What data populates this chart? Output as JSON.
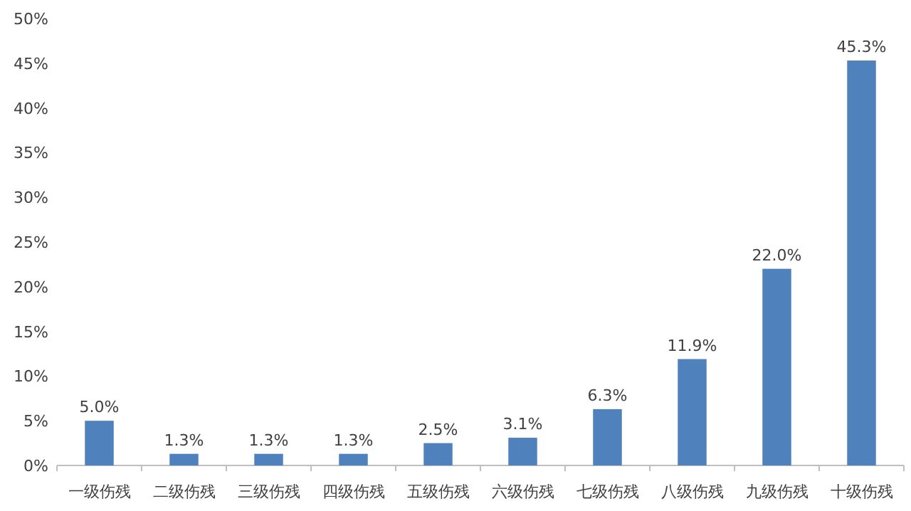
{
  "chart_data": {
    "type": "bar",
    "categories": [
      "一级伤残",
      "二级伤残",
      "三级伤残",
      "四级伤残",
      "五级伤残",
      "六级伤残",
      "七级伤残",
      "八级伤残",
      "九级伤残",
      "十级伤残"
    ],
    "values": [
      5.0,
      1.3,
      1.3,
      1.3,
      2.5,
      3.1,
      6.3,
      11.9,
      22.0,
      45.3
    ],
    "value_labels": [
      "5.0%",
      "1.3%",
      "1.3%",
      "1.3%",
      "2.5%",
      "3.1%",
      "6.3%",
      "11.9%",
      "22.0%",
      "45.3%"
    ],
    "color": "#4f81bd",
    "ylim": [
      0,
      50
    ],
    "yticks": [
      {
        "value": 0,
        "label": "0%"
      },
      {
        "value": 5,
        "label": "5%"
      },
      {
        "value": 10,
        "label": "10%"
      },
      {
        "value": 15,
        "label": "15%"
      },
      {
        "value": 20,
        "label": "20%"
      },
      {
        "value": 25,
        "label": "25%"
      },
      {
        "value": 30,
        "label": "30%"
      },
      {
        "value": 35,
        "label": "35%"
      },
      {
        "value": 40,
        "label": "40%"
      },
      {
        "value": 45,
        "label": "45%"
      },
      {
        "value": 50,
        "label": "50%"
      }
    ],
    "grid": false
  }
}
